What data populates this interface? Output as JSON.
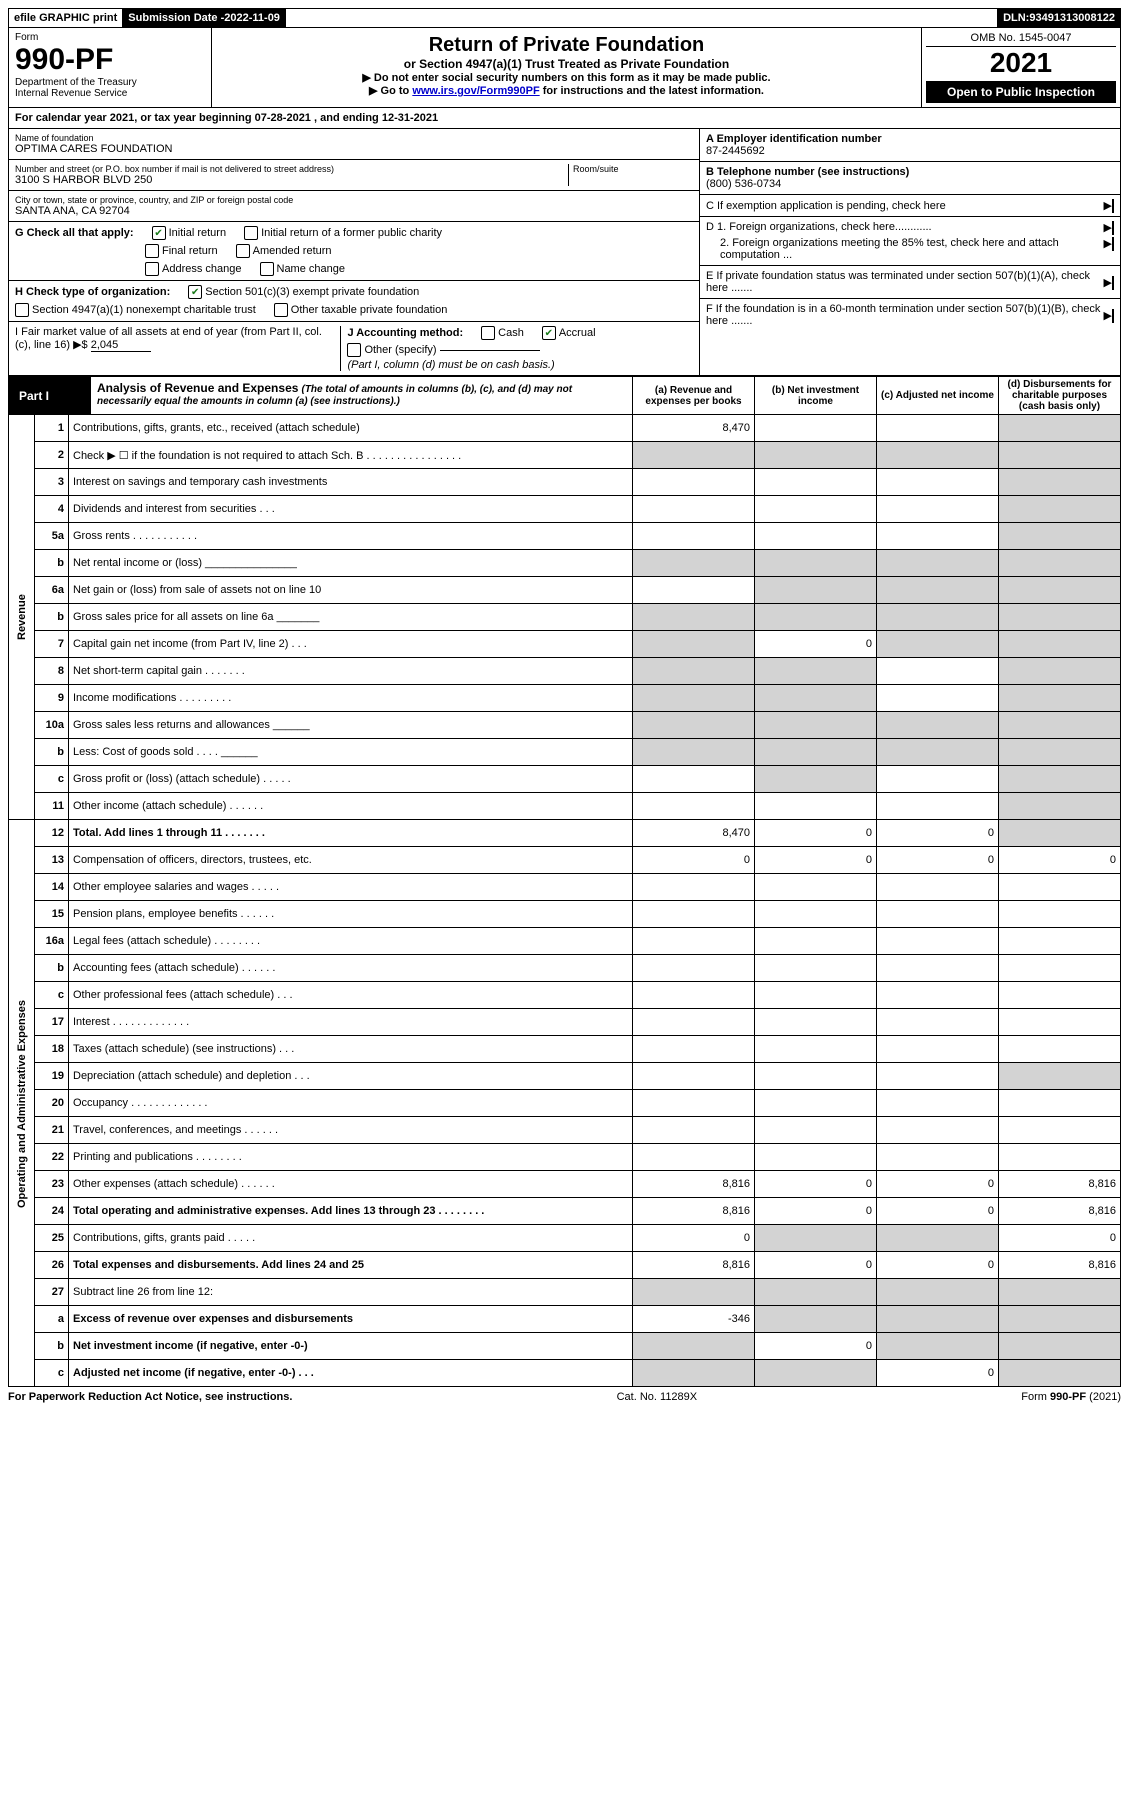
{
  "topbar": {
    "efile": "efile GRAPHIC print",
    "submission_label": "Submission Date - ",
    "submission_date": "2022-11-09",
    "dln_label": "DLN: ",
    "dln": "93491313008122"
  },
  "header": {
    "form_label": "Form",
    "form_number": "990-PF",
    "dept": "Department of the Treasury",
    "irs": "Internal Revenue Service",
    "title_main": "Return of Private Foundation",
    "title_sub": "or Section 4947(a)(1) Trust Treated as Private Foundation",
    "instr1": "▶ Do not enter social security numbers on this form as it may be made public.",
    "instr2_pre": "▶ Go to ",
    "instr2_link": "www.irs.gov/Form990PF",
    "instr2_post": " for instructions and the latest information.",
    "omb": "OMB No. 1545-0047",
    "year": "2021",
    "open_public": "Open to Public Inspection"
  },
  "calendar_year": {
    "pre": "For calendar year 2021, or tax year beginning ",
    "begin": "07-28-2021",
    "mid": " , and ending ",
    "end": "12-31-2021"
  },
  "foundation": {
    "name_label": "Name of foundation",
    "name": "OPTIMA CARES FOUNDATION",
    "address_label": "Number and street (or P.O. box number if mail is not delivered to street address)",
    "address": "3100 S HARBOR BLVD 250",
    "room_label": "Room/suite",
    "citystate_label": "City or town, state or province, country, and ZIP or foreign postal code",
    "citystate": "SANTA ANA, CA  92704"
  },
  "right_info": {
    "a_label": "A Employer identification number",
    "a_value": "87-2445692",
    "b_label": "B Telephone number (see instructions)",
    "b_value": "(800) 536-0734",
    "c_label": "C If exemption application is pending, check here",
    "d1_label": "D 1. Foreign organizations, check here............",
    "d2_label": "2. Foreign organizations meeting the 85% test, check here and attach computation ...",
    "e_label": "E  If private foundation status was terminated under section 507(b)(1)(A), check here .......",
    "f_label": "F  If the foundation is in a 60-month termination under section 507(b)(1)(B), check here ......."
  },
  "checks": {
    "g_label": "G Check all that apply:",
    "g_items": [
      "Initial return",
      "Initial return of a former public charity",
      "Final return",
      "Amended return",
      "Address change",
      "Name change"
    ],
    "g_checked": [
      true,
      false,
      false,
      false,
      false,
      false
    ],
    "h_label": "H Check type of organization:",
    "h_items": [
      "Section 501(c)(3) exempt private foundation",
      "Section 4947(a)(1) nonexempt charitable trust",
      "Other taxable private foundation"
    ],
    "h_checked": [
      true,
      false,
      false
    ],
    "i_label": "I Fair market value of all assets at end of year (from Part II, col. (c), line 16) ▶$ ",
    "i_value": "2,045",
    "j_label": "J Accounting method:",
    "j_items": [
      "Cash",
      "Accrual",
      "Other (specify)"
    ],
    "j_checked": [
      false,
      true,
      false
    ],
    "j_note": "(Part I, column (d) must be on cash basis.)"
  },
  "part1": {
    "label": "Part I",
    "title_bold": "Analysis of Revenue and Expenses",
    "title_rest": " (The total of amounts in columns (b), (c), and (d) may not necessarily equal the amounts in column (a) (see instructions).)",
    "col_a": "(a)   Revenue and expenses per books",
    "col_b": "(b)   Net investment income",
    "col_c": "(c)   Adjusted net income",
    "col_d": "(d)  Disbursements for charitable purposes (cash basis only)"
  },
  "sidebar": {
    "revenue": "Revenue",
    "expenses": "Operating and Administrative Expenses"
  },
  "rows": [
    {
      "n": "1",
      "desc": "Contributions, gifts, grants, etc., received (attach schedule)",
      "a": "8,470",
      "b": "",
      "c": "",
      "d": "",
      "shade": [
        "d"
      ]
    },
    {
      "n": "2",
      "desc": "Check ▶ ☐ if the foundation is not required to attach Sch. B     .  .  .  .  .  .  .  .  .  .  .  .  .  .  .  .",
      "a": "",
      "b": "",
      "c": "",
      "d": "",
      "shade": [
        "a",
        "b",
        "c",
        "d"
      ],
      "inline": true
    },
    {
      "n": "3",
      "desc": "Interest on savings and temporary cash investments",
      "a": "",
      "b": "",
      "c": "",
      "d": "",
      "shade": [
        "d"
      ]
    },
    {
      "n": "4",
      "desc": "Dividends and interest from securities     .   .   .",
      "a": "",
      "b": "",
      "c": "",
      "d": "",
      "shade": [
        "d"
      ]
    },
    {
      "n": "5a",
      "desc": "Gross rents     .   .   .   .   .   .   .   .   .   .   .",
      "a": "",
      "b": "",
      "c": "",
      "d": "",
      "shade": [
        "d"
      ]
    },
    {
      "n": "b",
      "desc": "Net rental income or (loss)    _______________",
      "a": "",
      "b": "",
      "c": "",
      "d": "",
      "shade": [
        "a",
        "b",
        "c",
        "d"
      ]
    },
    {
      "n": "6a",
      "desc": "Net gain or (loss) from sale of assets not on line 10",
      "a": "",
      "b": "",
      "c": "",
      "d": "",
      "shade": [
        "b",
        "c",
        "d"
      ]
    },
    {
      "n": "b",
      "desc": "Gross sales price for all assets on line 6a _______",
      "a": "",
      "b": "",
      "c": "",
      "d": "",
      "shade": [
        "a",
        "b",
        "c",
        "d"
      ]
    },
    {
      "n": "7",
      "desc": "Capital gain net income (from Part IV, line 2)   .   .   .",
      "a": "",
      "b": "0",
      "c": "",
      "d": "",
      "shade": [
        "a",
        "c",
        "d"
      ]
    },
    {
      "n": "8",
      "desc": "Net short-term capital gain   .   .   .   .   .   .   .",
      "a": "",
      "b": "",
      "c": "",
      "d": "",
      "shade": [
        "a",
        "b",
        "d"
      ]
    },
    {
      "n": "9",
      "desc": "Income modifications  .   .   .   .   .   .   .   .   .",
      "a": "",
      "b": "",
      "c": "",
      "d": "",
      "shade": [
        "a",
        "b",
        "d"
      ]
    },
    {
      "n": "10a",
      "desc": "Gross sales less returns and allowances   ______",
      "a": "",
      "b": "",
      "c": "",
      "d": "",
      "shade": [
        "a",
        "b",
        "c",
        "d"
      ]
    },
    {
      "n": "b",
      "desc": "Less: Cost of goods sold     .   .   .   .   ______",
      "a": "",
      "b": "",
      "c": "",
      "d": "",
      "shade": [
        "a",
        "b",
        "c",
        "d"
      ]
    },
    {
      "n": "c",
      "desc": "Gross profit or (loss) (attach schedule)    .   .   .   .   .",
      "a": "",
      "b": "",
      "c": "",
      "d": "",
      "shade": [
        "b",
        "d"
      ]
    },
    {
      "n": "11",
      "desc": "Other income (attach schedule)    .   .   .   .   .   .",
      "a": "",
      "b": "",
      "c": "",
      "d": "",
      "shade": [
        "d"
      ]
    },
    {
      "n": "12",
      "desc": "Total. Add lines 1 through 11   .   .   .   .   .   .   .",
      "a": "8,470",
      "b": "0",
      "c": "0",
      "d": "",
      "shade": [
        "d"
      ],
      "bold": true
    },
    {
      "n": "13",
      "desc": "Compensation of officers, directors, trustees, etc.",
      "a": "0",
      "b": "0",
      "c": "0",
      "d": "0"
    },
    {
      "n": "14",
      "desc": "Other employee salaries and wages   .   .   .   .   .",
      "a": "",
      "b": "",
      "c": "",
      "d": ""
    },
    {
      "n": "15",
      "desc": "Pension plans, employee benefits  .   .   .   .   .   .",
      "a": "",
      "b": "",
      "c": "",
      "d": ""
    },
    {
      "n": "16a",
      "desc": "Legal fees (attach schedule) .   .   .   .   .   .   .   .",
      "a": "",
      "b": "",
      "c": "",
      "d": ""
    },
    {
      "n": "b",
      "desc": "Accounting fees (attach schedule)  .   .   .   .   .   .",
      "a": "",
      "b": "",
      "c": "",
      "d": ""
    },
    {
      "n": "c",
      "desc": "Other professional fees (attach schedule)    .   .   .",
      "a": "",
      "b": "",
      "c": "",
      "d": ""
    },
    {
      "n": "17",
      "desc": "Interest  .   .   .   .   .   .   .   .   .   .   .   .   .",
      "a": "",
      "b": "",
      "c": "",
      "d": ""
    },
    {
      "n": "18",
      "desc": "Taxes (attach schedule) (see instructions)    .   .   .",
      "a": "",
      "b": "",
      "c": "",
      "d": ""
    },
    {
      "n": "19",
      "desc": "Depreciation (attach schedule) and depletion   .   .   .",
      "a": "",
      "b": "",
      "c": "",
      "d": "",
      "shade": [
        "d"
      ]
    },
    {
      "n": "20",
      "desc": "Occupancy .   .   .   .   .   .   .   .   .   .   .   .   .",
      "a": "",
      "b": "",
      "c": "",
      "d": ""
    },
    {
      "n": "21",
      "desc": "Travel, conferences, and meetings  .   .   .   .   .   .",
      "a": "",
      "b": "",
      "c": "",
      "d": ""
    },
    {
      "n": "22",
      "desc": "Printing and publications  .   .   .   .   .   .   .   .",
      "a": "",
      "b": "",
      "c": "",
      "d": ""
    },
    {
      "n": "23",
      "desc": "Other expenses (attach schedule) .   .   .   .   .   .",
      "a": "8,816",
      "b": "0",
      "c": "0",
      "d": "8,816"
    },
    {
      "n": "24",
      "desc": "Total operating and administrative expenses. Add lines 13 through 23   .   .   .   .   .   .   .   .",
      "a": "8,816",
      "b": "0",
      "c": "0",
      "d": "8,816",
      "bold": true
    },
    {
      "n": "25",
      "desc": "Contributions, gifts, grants paid     .   .   .   .   .",
      "a": "0",
      "b": "",
      "c": "",
      "d": "0",
      "shade": [
        "b",
        "c"
      ]
    },
    {
      "n": "26",
      "desc": "Total expenses and disbursements. Add lines 24 and 25",
      "a": "8,816",
      "b": "0",
      "c": "0",
      "d": "8,816",
      "bold": true
    },
    {
      "n": "27",
      "desc": "Subtract line 26 from line 12:",
      "a": "",
      "b": "",
      "c": "",
      "d": "",
      "shade": [
        "a",
        "b",
        "c",
        "d"
      ]
    },
    {
      "n": "a",
      "desc": "Excess of revenue over expenses and disbursements",
      "a": "-346",
      "b": "",
      "c": "",
      "d": "",
      "shade": [
        "b",
        "c",
        "d"
      ],
      "bold": true
    },
    {
      "n": "b",
      "desc": "Net investment income (if negative, enter -0-)",
      "a": "",
      "b": "0",
      "c": "",
      "d": "",
      "shade": [
        "a",
        "c",
        "d"
      ],
      "bold": true
    },
    {
      "n": "c",
      "desc": "Adjusted net income (if negative, enter -0-)   .   .   .",
      "a": "",
      "b": "",
      "c": "0",
      "d": "",
      "shade": [
        "a",
        "b",
        "d"
      ],
      "bold": true
    }
  ],
  "footer": {
    "left": "For Paperwork Reduction Act Notice, see instructions.",
    "mid": "Cat. No. 11289X",
    "right": "Form 990-PF (2021)"
  }
}
